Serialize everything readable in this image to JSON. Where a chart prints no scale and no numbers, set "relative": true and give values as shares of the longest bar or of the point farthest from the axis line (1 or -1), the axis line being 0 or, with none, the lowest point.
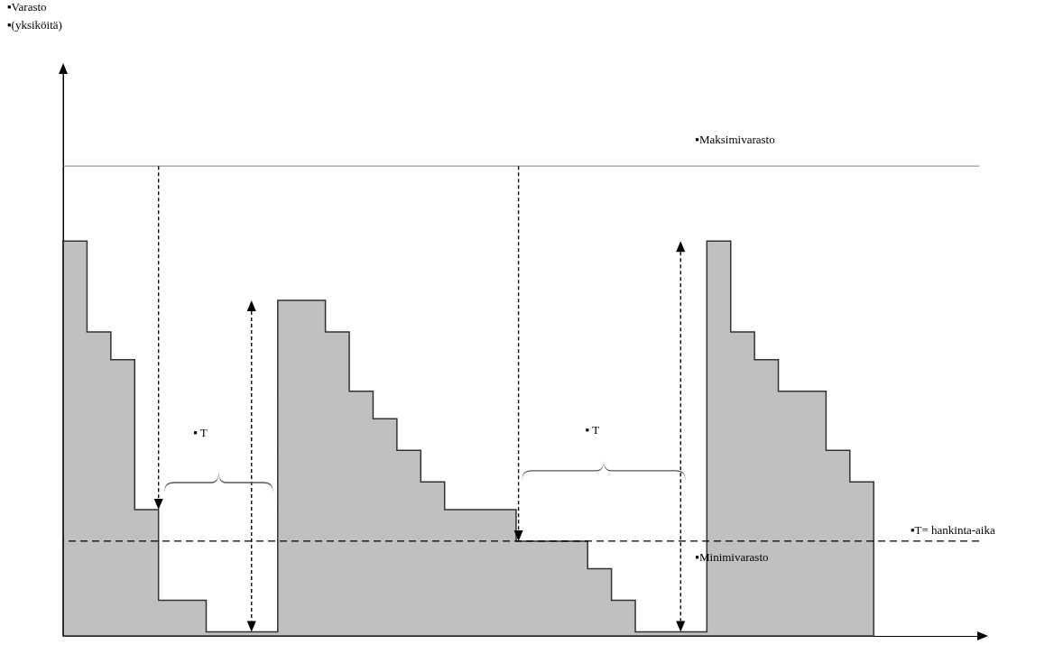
{
  "chart_data": {
    "type": "area",
    "relative": true,
    "categories": [
      null,
      null,
      null,
      null,
      null,
      null,
      null,
      null,
      null,
      null,
      null,
      null,
      null,
      null,
      null,
      null,
      null,
      null,
      null,
      null,
      null,
      null,
      null,
      null,
      null,
      null,
      null,
      null,
      null,
      null,
      null,
      null,
      null,
      null,
      null
    ],
    "values": [
      1,
      0.77,
      0.7,
      0.32,
      0.09,
      0.09,
      0.01,
      0.01,
      0.01,
      0.85,
      0.85,
      0.77,
      0.62,
      0.55,
      0.47,
      0.39,
      0.32,
      0.32,
      0.32,
      0.24,
      0.24,
      0.24,
      0.17,
      0.09,
      0.01,
      0.01,
      0.01,
      1,
      0.77,
      0.7,
      0.62,
      0.62,
      0.47,
      0.39,
      0.39
    ],
    "color": "#c0c0c0",
    "ref_lines": [
      {
        "axis": "y",
        "value": 1.19,
        "label": "▪Maksimivarasto",
        "color": "#999999",
        "line_style": "solid"
      },
      {
        "axis": "y",
        "value": 0.24,
        "label": "▪Minimivarasto",
        "color": "#000000",
        "line_style": "dashed"
      }
    ],
    "annotations": [
      "▪Varasto",
      "▪(yksiköitä)",
      "▪ T",
      "▪ T",
      "▪T= hankinta-aika"
    ]
  }
}
